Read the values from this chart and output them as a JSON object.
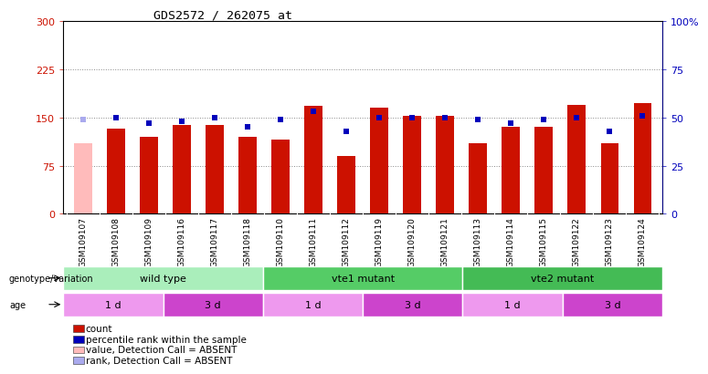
{
  "title": "GDS2572 / 262075_at",
  "samples": [
    "GSM109107",
    "GSM109108",
    "GSM109109",
    "GSM109116",
    "GSM109117",
    "GSM109118",
    "GSM109110",
    "GSM109111",
    "GSM109112",
    "GSM109119",
    "GSM109120",
    "GSM109121",
    "GSM109113",
    "GSM109114",
    "GSM109115",
    "GSM109122",
    "GSM109123",
    "GSM109124"
  ],
  "bar_values": [
    110,
    132,
    120,
    138,
    138,
    120,
    115,
    168,
    90,
    165,
    152,
    152,
    110,
    135,
    135,
    170,
    110,
    172
  ],
  "bar_absent": [
    true,
    false,
    false,
    false,
    false,
    false,
    false,
    false,
    false,
    false,
    false,
    false,
    false,
    false,
    false,
    false,
    false,
    false
  ],
  "rank_values": [
    49,
    50,
    47,
    48,
    50,
    45,
    49,
    53,
    43,
    50,
    50,
    50,
    49,
    47,
    49,
    50,
    43,
    51
  ],
  "rank_absent": [
    true,
    false,
    false,
    false,
    false,
    false,
    false,
    false,
    false,
    false,
    false,
    false,
    false,
    false,
    false,
    false,
    false,
    false
  ],
  "ylim_left": [
    0,
    300
  ],
  "ylim_right": [
    0,
    100
  ],
  "yticks_left": [
    0,
    75,
    150,
    225,
    300
  ],
  "yticks_right": [
    0,
    25,
    50,
    75,
    100
  ],
  "ytick_labels_left": [
    "0",
    "75",
    "150",
    "225",
    "300"
  ],
  "ytick_labels_right": [
    "0",
    "25",
    "50",
    "75",
    "100%"
  ],
  "bar_color_normal": "#cc1100",
  "bar_color_absent": "#ffbbbb",
  "rank_color_normal": "#0000bb",
  "rank_color_absent": "#aaaaee",
  "grid_color": "#888888",
  "bg_color": "#ffffff",
  "plot_bg": "#ffffff",
  "xticklabel_bg": "#bbbbbb",
  "genotype_groups": [
    {
      "label": "wild type",
      "start": 0,
      "end": 6,
      "color": "#aaeebb"
    },
    {
      "label": "vte1 mutant",
      "start": 6,
      "end": 12,
      "color": "#55cc66"
    },
    {
      "label": "vte2 mutant",
      "start": 12,
      "end": 18,
      "color": "#44bb55"
    }
  ],
  "age_groups": [
    {
      "label": "1 d",
      "start": 0,
      "end": 3,
      "color": "#ee99ee"
    },
    {
      "label": "3 d",
      "start": 3,
      "end": 6,
      "color": "#cc44cc"
    },
    {
      "label": "1 d",
      "start": 6,
      "end": 9,
      "color": "#ee99ee"
    },
    {
      "label": "3 d",
      "start": 9,
      "end": 12,
      "color": "#cc44cc"
    },
    {
      "label": "1 d",
      "start": 12,
      "end": 15,
      "color": "#ee99ee"
    },
    {
      "label": "3 d",
      "start": 15,
      "end": 18,
      "color": "#cc44cc"
    }
  ],
  "legend_items": [
    {
      "color": "#cc1100",
      "label": "count",
      "col": 0,
      "row": 0
    },
    {
      "color": "#0000bb",
      "label": "percentile rank within the sample",
      "col": 0,
      "row": 1
    },
    {
      "color": "#ffbbbb",
      "label": "value, Detection Call = ABSENT",
      "col": 0,
      "row": 2
    },
    {
      "color": "#aaaaee",
      "label": "rank, Detection Call = ABSENT",
      "col": 0,
      "row": 3
    }
  ]
}
